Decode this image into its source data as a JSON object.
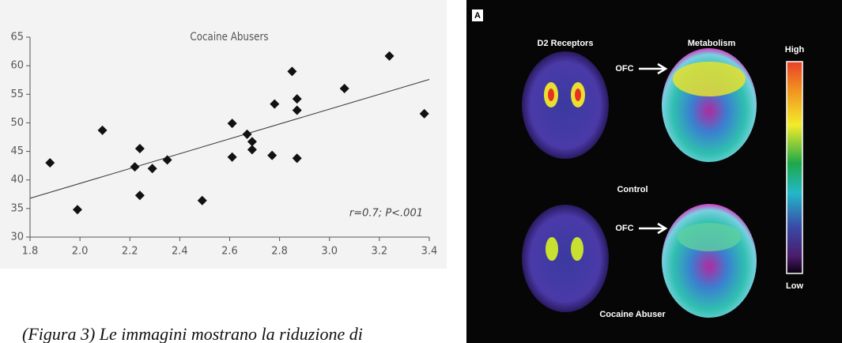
{
  "chart_data": {
    "type": "scatter",
    "title": "Cocaine Abusers",
    "annotation": "r=0.7; P<.001",
    "x": [
      1.88,
      1.99,
      2.09,
      2.22,
      2.24,
      2.24,
      2.29,
      2.35,
      2.49,
      2.61,
      2.61,
      2.67,
      2.69,
      2.69,
      2.77,
      2.78,
      2.85,
      2.87,
      2.87,
      2.87,
      3.06,
      3.24,
      3.38
    ],
    "values": [
      43,
      34.8,
      48.7,
      42.3,
      45.5,
      37.3,
      42,
      43.5,
      36.4,
      49.9,
      44,
      48,
      46.7,
      45.3,
      44.3,
      53.3,
      59,
      54.2,
      52.2,
      43.8,
      56,
      61.7,
      51.6
    ],
    "color": "#111111",
    "trendline": {
      "x": [
        1.8,
        3.4
      ],
      "y": [
        36.8,
        57.6
      ],
      "color": "#333333"
    },
    "xlim": [
      1.8,
      3.4
    ],
    "ylim": [
      30,
      65
    ],
    "xticks": [
      1.8,
      {
        "value": 2,
        "label": "2.0"
      },
      2.2,
      2.4,
      2.6,
      2.8,
      {
        "value": 3,
        "label": "3.0"
      },
      3.2,
      3.4
    ],
    "yticks": [
      30,
      35,
      40,
      45,
      50,
      55,
      60,
      65
    ]
  },
  "figure": {
    "panel": "A",
    "d2": "D2 Receptors",
    "metabolism": "Metabolism",
    "high": "High",
    "low": "Low",
    "ofc_top": "OFC",
    "control": "Control",
    "ofc_bottom": "OFC",
    "abuser": "Cocaine Abuser"
  },
  "caption": "(Figura 3) Le immagini  mostrano la riduzione di"
}
